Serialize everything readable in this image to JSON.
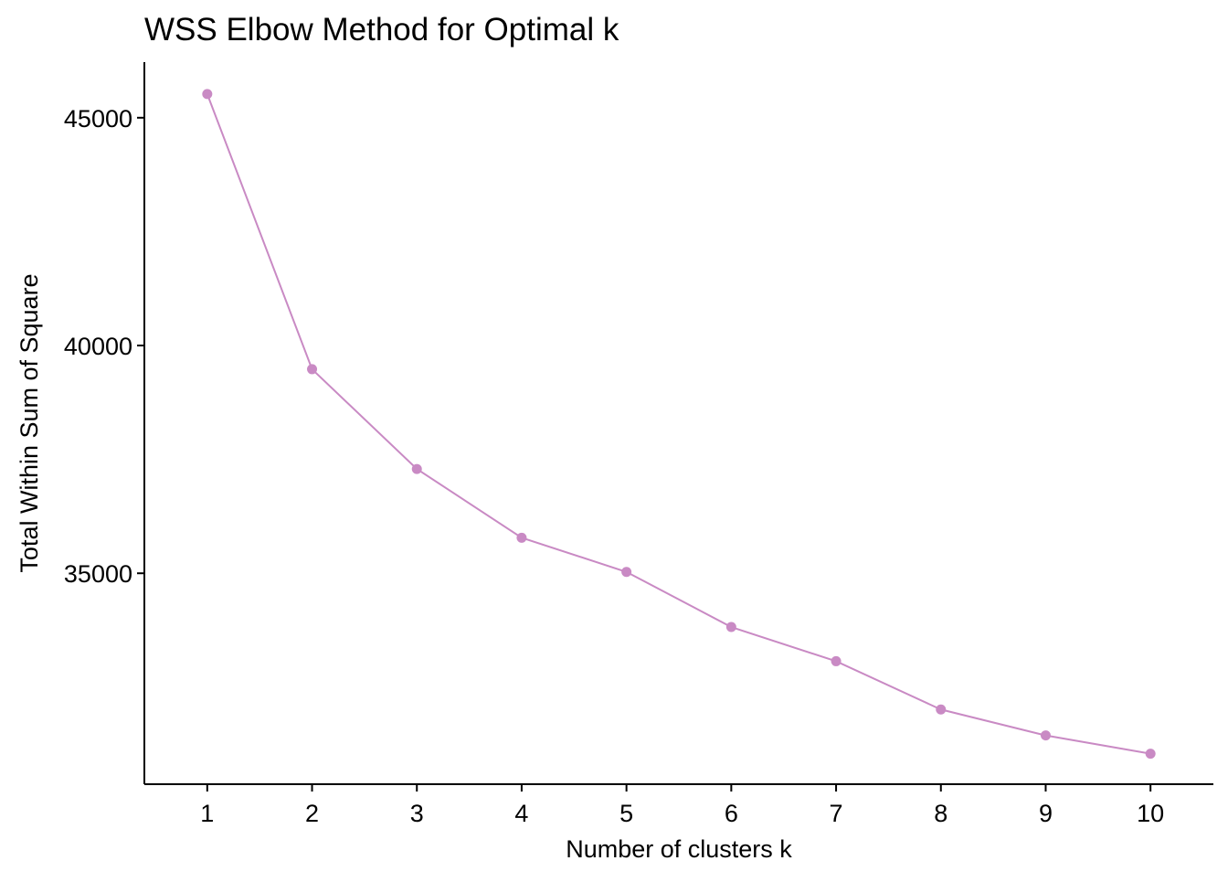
{
  "chart_data": {
    "type": "line",
    "title": "WSS Elbow Method for Optimal k",
    "xlabel": "Number of clusters k",
    "ylabel": "Total Within Sum of Square",
    "x": [
      1,
      2,
      3,
      4,
      5,
      6,
      7,
      8,
      9,
      10
    ],
    "series": [
      {
        "values": [
          45520,
          39480,
          37290,
          35780,
          35030,
          33820,
          33070,
          32010,
          31440,
          31040
        ]
      }
    ],
    "x_ticks": [
      "1",
      "2",
      "3",
      "4",
      "5",
      "6",
      "7",
      "8",
      "9",
      "10"
    ],
    "y_ticks": [
      35000,
      40000,
      45000
    ],
    "y_tick_labels": [
      "35000",
      "40000",
      "45000"
    ],
    "xlim": [
      0.4,
      10.6
    ],
    "ylim": [
      30370,
      46220
    ],
    "grid": false,
    "legend": "none",
    "colors": {
      "series": "#c98ac4",
      "axis": "#000000"
    }
  }
}
